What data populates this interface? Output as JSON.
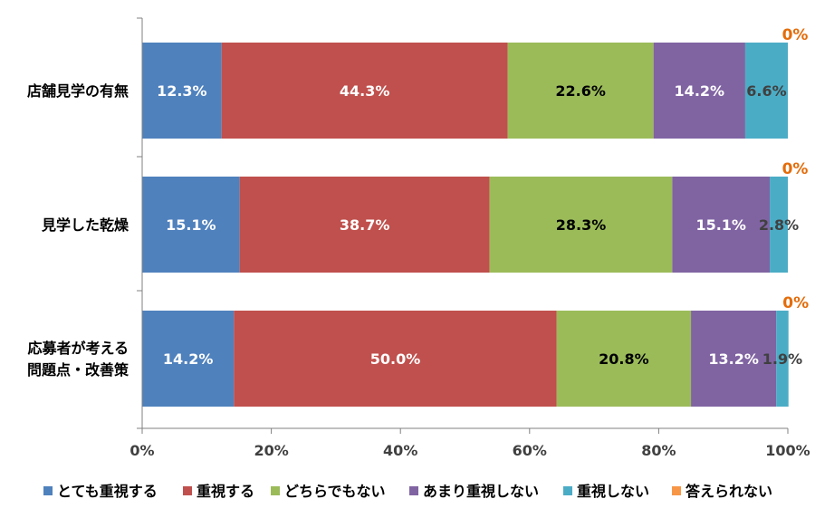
{
  "chart_data": {
    "type": "bar",
    "orientation": "horizontal",
    "stacked": true,
    "categories": [
      "店舗見学の有無",
      "見学した乾燥",
      "応募者が考える問題点・改善策"
    ],
    "category_lines": [
      [
        "店舗見学の有無"
      ],
      [
        "見学した乾燥"
      ],
      [
        "応募者が考える",
        "問題点・改善策"
      ]
    ],
    "series": [
      {
        "name": "とても重視する",
        "color": "#4f81bd",
        "values": [
          12.3,
          15.1,
          14.2
        ],
        "labels": [
          "12.3%",
          "15.1%",
          "14.2%"
        ],
        "label_color": "#ffffff"
      },
      {
        "name": "重視する",
        "color": "#c0504d",
        "values": [
          44.3,
          38.7,
          50.0
        ],
        "labels": [
          "44.3%",
          "38.7%",
          "50.0%"
        ],
        "label_color": "#ffffff"
      },
      {
        "name": "どちらでもない",
        "color": "#9bbb59",
        "values": [
          22.6,
          28.3,
          20.8
        ],
        "labels": [
          "22.6%",
          "28.3%",
          "20.8%"
        ],
        "label_color": "#000000"
      },
      {
        "name": "あまり重視しない",
        "color": "#8064a2",
        "values": [
          14.2,
          15.1,
          13.2
        ],
        "labels": [
          "14.2%",
          "15.1%",
          "13.2%"
        ],
        "label_color": "#ffffff"
      },
      {
        "name": "重視しない",
        "color": "#4bacc6",
        "values": [
          6.6,
          2.8,
          1.9
        ],
        "labels": [
          "6.6%",
          "2.8%",
          "1.9%"
        ],
        "label_color": "#404040"
      },
      {
        "name": "答えられない",
        "color": "#f79646",
        "values": [
          0,
          0,
          0
        ],
        "labels": [
          "0%",
          "0%",
          "0%"
        ],
        "label_color": "#e46c0a"
      }
    ],
    "xlim": [
      0,
      100
    ],
    "x_ticks": [
      "0%",
      "20%",
      "40%",
      "60%",
      "80%",
      "100%"
    ],
    "grid": false,
    "legend_position": "bottom"
  }
}
